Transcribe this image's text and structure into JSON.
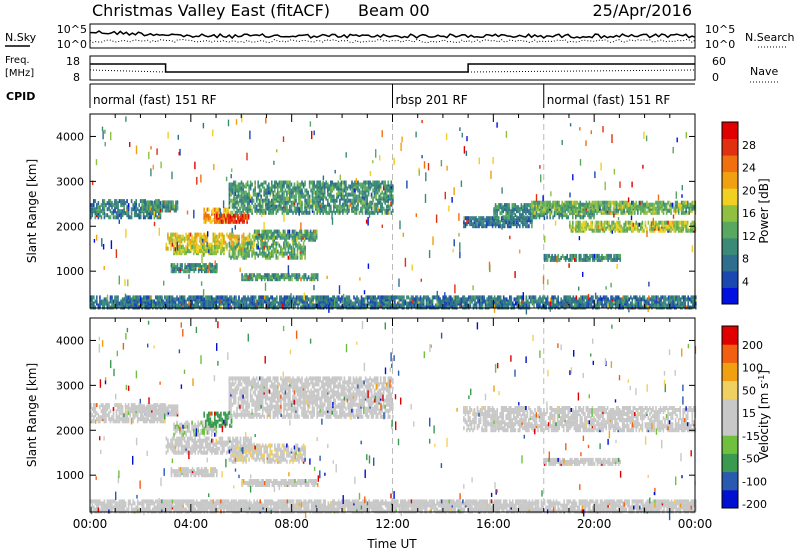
{
  "header": {
    "title": "Christmas Valley East (fitACF)",
    "beam": "Beam 00",
    "date": "25/Apr/2016"
  },
  "panels": {
    "noise": {
      "left_label": "N.Sky",
      "right_label": "N.Search",
      "left_ticks": [
        "10^5",
        "10^0"
      ],
      "right_ticks": [
        "10^5",
        "10^0"
      ]
    },
    "freq": {
      "left_label_1": "Freq.",
      "left_label_2": "[MHz]",
      "right_label": "Nave",
      "left_ticks": [
        "18",
        "8"
      ],
      "right_ticks": [
        "60",
        "0"
      ]
    },
    "cpid": {
      "label": "CPID",
      "segments": [
        {
          "text": "normal (fast) 151 RF",
          "start": 0
        },
        {
          "text": "rbsp 201 RF",
          "start": 12
        },
        {
          "text": "normal (fast) 151 RF",
          "start": 18
        }
      ]
    }
  },
  "colors": {
    "power_scale": [
      "#0010e0",
      "#1a48b0",
      "#2f6e8e",
      "#3b8a78",
      "#58a860",
      "#8fc040",
      "#f0d020",
      "#f0a010",
      "#f07010",
      "#e03010",
      "#e00000"
    ],
    "velocity_scale": [
      "#e00000",
      "#f06010",
      "#f0a010",
      "#f0d060",
      "#c8c8c8",
      "#c8c8c8",
      "#70c040",
      "#3a9a50",
      "#2a5ab0",
      "#0010d0"
    ]
  },
  "chart_data": [
    {
      "type": "heatmap",
      "name": "power",
      "xlabel": "",
      "ylabel": "Slant Range [km]",
      "ylim": [
        180,
        4500
      ],
      "xlim": [
        0,
        24
      ],
      "yticks": [
        1000,
        2000,
        3000,
        4000
      ],
      "colorbar": {
        "label": "Power [dB]",
        "ticks": [
          4,
          8,
          12,
          16,
          20,
          24,
          28
        ],
        "range": [
          0,
          32
        ]
      },
      "regions": [
        {
          "t0": 0.0,
          "t1": 2.8,
          "r0": 2200,
          "r1": 2600,
          "value": 9
        },
        {
          "t0": 2.0,
          "t1": 3.5,
          "r0": 2350,
          "r1": 2550,
          "value": 10
        },
        {
          "t0": 3.0,
          "t1": 6.5,
          "r0": 1500,
          "r1": 1850,
          "value": 19
        },
        {
          "t0": 3.3,
          "t1": 5.3,
          "r0": 1400,
          "r1": 1550,
          "value": 16
        },
        {
          "t0": 4.5,
          "t1": 5.5,
          "r0": 2100,
          "r1": 2400,
          "value": 22
        },
        {
          "t0": 5.0,
          "t1": 6.3,
          "r0": 2100,
          "r1": 2250,
          "value": 28
        },
        {
          "t0": 5.5,
          "t1": 12.0,
          "r0": 2300,
          "r1": 3000,
          "value": 11
        },
        {
          "t0": 5.5,
          "t1": 8.5,
          "r0": 1300,
          "r1": 1650,
          "value": 13
        },
        {
          "t0": 6.5,
          "t1": 9.0,
          "r0": 1700,
          "r1": 1900,
          "value": 12
        },
        {
          "t0": 3.2,
          "t1": 5.0,
          "r0": 1000,
          "r1": 1150,
          "value": 10
        },
        {
          "t0": 6.0,
          "t1": 9.0,
          "r0": 820,
          "r1": 920,
          "value": 11
        },
        {
          "t0": 14.8,
          "t1": 17.5,
          "r0": 2000,
          "r1": 2200,
          "value": 8
        },
        {
          "t0": 16.0,
          "t1": 20.0,
          "r0": 2200,
          "r1": 2500,
          "value": 10
        },
        {
          "t0": 17.5,
          "t1": 24.0,
          "r0": 2300,
          "r1": 2550,
          "value": 14
        },
        {
          "t0": 19.0,
          "t1": 24.0,
          "r0": 1900,
          "r1": 2100,
          "value": 16
        },
        {
          "t0": 18.0,
          "t1": 21.0,
          "r0": 1250,
          "r1": 1350,
          "value": 10
        },
        {
          "t0": 0.0,
          "t1": 24.0,
          "r0": 190,
          "r1": 420,
          "value": 8
        }
      ]
    },
    {
      "type": "heatmap",
      "name": "velocity",
      "xlabel": "Time UT",
      "ylabel": "Slant Range [km]",
      "ylim": [
        180,
        4500
      ],
      "xlim": [
        0,
        24
      ],
      "xticks": [
        "00:00",
        "04:00",
        "08:00",
        "12:00",
        "16:00",
        "20:00",
        "00:00"
      ],
      "yticks": [
        1000,
        2000,
        3000,
        4000
      ],
      "colorbar": {
        "label": "Velocity [m s^-1]",
        "ticks": [
          200,
          100,
          50,
          15,
          -15,
          -50,
          -100,
          -200
        ],
        "range": [
          -250,
          250
        ]
      },
      "regions": [
        {
          "t0": 0.0,
          "t1": 3.0,
          "r0": 2200,
          "r1": 2600,
          "value": 0
        },
        {
          "t0": 2.0,
          "t1": 3.5,
          "r0": 2350,
          "r1": 2550,
          "value": -20
        },
        {
          "t0": 3.0,
          "t1": 6.5,
          "r0": 1500,
          "r1": 1850,
          "value": 0
        },
        {
          "t0": 3.3,
          "t1": 5.0,
          "r0": 1900,
          "r1": 2200,
          "value": -40
        },
        {
          "t0": 4.5,
          "t1": 5.6,
          "r0": 2100,
          "r1": 2400,
          "value": -120
        },
        {
          "t0": 5.5,
          "t1": 12.0,
          "r0": 2300,
          "r1": 3200,
          "value": 0
        },
        {
          "t0": 5.5,
          "t1": 8.5,
          "r0": 1300,
          "r1": 1700,
          "value": 40
        },
        {
          "t0": 3.2,
          "t1": 5.0,
          "r0": 1000,
          "r1": 1150,
          "value": -30
        },
        {
          "t0": 6.0,
          "t1": 9.0,
          "r0": 780,
          "r1": 880,
          "value": 0
        },
        {
          "t0": 14.8,
          "t1": 24.0,
          "r0": 2000,
          "r1": 2500,
          "value": 0
        },
        {
          "t0": 18.0,
          "t1": 21.0,
          "r0": 1250,
          "r1": 1350,
          "value": 0
        },
        {
          "t0": 0.0,
          "t1": 24.0,
          "r0": 190,
          "r1": 420,
          "value": -30
        }
      ]
    }
  ]
}
